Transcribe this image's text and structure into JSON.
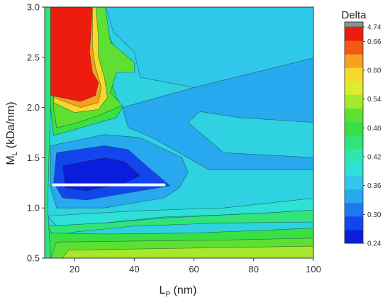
{
  "chart_data": {
    "type": "heatmap",
    "title": "",
    "xlabel": "L",
    "xlabel_sub": "P",
    "xlabel_unit": " (nm)",
    "ylabel": "M",
    "ylabel_sub": "L",
    "ylabel_unit": " (kDa/nm)",
    "xlim": [
      10,
      100
    ],
    "ylim": [
      0.5,
      3.0
    ],
    "x_ticks": [
      "20",
      "40",
      "60",
      "80",
      "100"
    ],
    "x_tick_values": [
      20,
      40,
      60,
      80,
      100
    ],
    "y_ticks": [
      "0.5",
      "1.0",
      "1.5",
      "2.0",
      "2.5",
      "3.0"
    ],
    "y_tick_values": [
      0.5,
      1.0,
      1.5,
      2.0,
      2.5,
      3.0
    ],
    "colorbar": {
      "title": "Delta",
      "labels": [
        "4.74",
        "0.66",
        "0.60",
        "0.54",
        "0.48",
        "0.42",
        "0.36",
        "0.30",
        "0.24"
      ],
      "levels": [
        0.24,
        0.27,
        0.3,
        0.33,
        0.36,
        0.39,
        0.42,
        0.45,
        0.48,
        0.51,
        0.54,
        0.57,
        0.6,
        0.63,
        0.66,
        0.69
      ],
      "colors": [
        "#0a1cdc",
        "#1246ec",
        "#1e78f0",
        "#28a8ee",
        "#30c8ea",
        "#2ee0d6",
        "#2ee6b0",
        "#30e47a",
        "#38e044",
        "#5ee032",
        "#a6e82e",
        "#dcec2e",
        "#f8d82a",
        "#f6a020",
        "#f05a14",
        "#ee1c0e"
      ],
      "overflow_color": "#909090"
    },
    "highlight_line": {
      "x_start": 13,
      "x_end": 50,
      "y": 1.23,
      "color": "#ffffff"
    },
    "background_color": "#2ed2e0",
    "regions": [
      {
        "name": "top-right-lightblue",
        "value": 0.38,
        "polygon": [
          [
            30,
            2.9
          ],
          [
            100,
            2.9
          ],
          [
            100,
            2.2
          ],
          [
            60,
            2.2
          ],
          [
            42,
            2.3
          ],
          [
            40,
            2.55
          ],
          [
            33,
            2.75
          ]
        ]
      },
      {
        "name": "mid-right-blue",
        "value": 0.345,
        "polygon": [
          [
            36,
            2.0
          ],
          [
            60,
            2.2
          ],
          [
            100,
            2.5
          ],
          [
            100,
            1.85
          ],
          [
            75,
            1.9
          ],
          [
            62,
            1.96
          ],
          [
            58,
            1.85
          ],
          [
            70,
            1.55
          ],
          [
            100,
            1.5
          ],
          [
            100,
            1.38
          ],
          [
            65,
            1.38
          ],
          [
            55,
            1.55
          ],
          [
            46,
            1.7
          ],
          [
            38,
            1.8
          ]
        ]
      },
      {
        "name": "low-blue-band",
        "value": 0.33,
        "polygon": [
          [
            12,
            1.62
          ],
          [
            30,
            1.73
          ],
          [
            42,
            1.7
          ],
          [
            56,
            1.5
          ],
          [
            58,
            1.35
          ],
          [
            55,
            1.2
          ],
          [
            50,
            1.1
          ],
          [
            30,
            1.0
          ],
          [
            14,
            1.0
          ],
          [
            12,
            1.2
          ]
        ]
      },
      {
        "name": "blue-core",
        "value": 0.285,
        "polygon": [
          [
            14,
            1.55
          ],
          [
            30,
            1.62
          ],
          [
            38,
            1.58
          ],
          [
            44,
            1.42
          ],
          [
            52,
            1.22
          ],
          [
            40,
            1.16
          ],
          [
            24,
            1.08
          ],
          [
            16,
            1.1
          ],
          [
            13,
            1.25
          ]
        ]
      },
      {
        "name": "deep-blue-core",
        "value": 0.25,
        "polygon": [
          [
            16,
            1.42
          ],
          [
            30,
            1.5
          ],
          [
            37,
            1.46
          ],
          [
            42,
            1.32
          ],
          [
            36,
            1.24
          ],
          [
            24,
            1.17
          ],
          [
            17,
            1.2
          ]
        ]
      },
      {
        "name": "lower-cyan",
        "value": 0.39,
        "polygon": [
          [
            11,
            0.92
          ],
          [
            40,
            0.97
          ],
          [
            60,
            0.99
          ],
          [
            70,
            1.0
          ],
          [
            100,
            1.1
          ],
          [
            100,
            0.98
          ],
          [
            84,
            0.95
          ],
          [
            70,
            0.93
          ],
          [
            50,
            0.91
          ],
          [
            30,
            0.85
          ],
          [
            14,
            0.82
          ]
        ]
      },
      {
        "name": "teal-band",
        "value": 0.45,
        "polygon": [
          [
            11,
            0.82
          ],
          [
            30,
            0.85
          ],
          [
            50,
            0.9
          ],
          [
            70,
            0.93
          ],
          [
            84,
            0.95
          ],
          [
            100,
            0.98
          ],
          [
            100,
            0.86
          ],
          [
            70,
            0.85
          ],
          [
            40,
            0.82
          ],
          [
            20,
            0.76
          ],
          [
            13,
            0.72
          ]
        ]
      },
      {
        "name": "green-bottom",
        "value": 0.5,
        "polygon": [
          [
            12,
            0.75
          ],
          [
            30,
            0.74
          ],
          [
            60,
            0.75
          ],
          [
            85,
            0.78
          ],
          [
            100,
            0.8
          ],
          [
            100,
            0.5
          ],
          [
            10,
            0.5
          ],
          [
            10,
            0.72
          ]
        ]
      },
      {
        "name": "green-bottom-2",
        "value": 0.53,
        "polygon": [
          [
            14,
            0.66
          ],
          [
            40,
            0.67
          ],
          [
            70,
            0.68
          ],
          [
            100,
            0.7
          ],
          [
            100,
            0.5
          ],
          [
            12,
            0.5
          ]
        ]
      },
      {
        "name": "green-bottom-3",
        "value": 0.56,
        "polygon": [
          [
            18,
            0.58
          ],
          [
            60,
            0.6
          ],
          [
            100,
            0.62
          ],
          [
            100,
            0.5
          ],
          [
            16,
            0.5
          ]
        ]
      },
      {
        "name": "left-teal-strip",
        "value": 0.45,
        "polygon": [
          [
            10,
            2.9
          ],
          [
            10,
            0.5
          ],
          [
            12,
            0.5
          ],
          [
            11,
            1.0
          ],
          [
            11.5,
            1.6
          ],
          [
            12,
            2.0
          ],
          [
            13,
            2.4
          ],
          [
            13,
            2.9
          ]
        ]
      },
      {
        "name": "green-wedge-left",
        "value": 0.5,
        "polygon": [
          [
            12,
            2.9
          ],
          [
            12,
            2.0
          ],
          [
            13,
            1.72
          ],
          [
            20,
            1.78
          ],
          [
            28,
            1.85
          ],
          [
            34,
            1.9
          ],
          [
            36,
            2.0
          ],
          [
            34,
            2.1
          ],
          [
            32,
            2.3
          ],
          [
            34,
            2.55
          ],
          [
            31,
            2.75
          ],
          [
            30,
            2.9
          ]
        ]
      },
      {
        "name": "green-top-spur",
        "value": 0.52,
        "polygon": [
          [
            30,
            2.9
          ],
          [
            32,
            2.65
          ],
          [
            36,
            2.55
          ],
          [
            40,
            2.45
          ],
          [
            40,
            2.35
          ],
          [
            34,
            2.35
          ],
          [
            32,
            2.15
          ],
          [
            36,
            2.02
          ],
          [
            28,
            1.92
          ],
          [
            20,
            1.84
          ],
          [
            14,
            1.8
          ],
          [
            13,
            2.0
          ],
          [
            13,
            2.9
          ]
        ]
      },
      {
        "name": "yellow-ring",
        "value": 0.61,
        "polygon": [
          [
            13,
            2.9
          ],
          [
            13,
            2.05
          ],
          [
            20,
            1.95
          ],
          [
            28,
            1.98
          ],
          [
            31,
            2.1
          ],
          [
            30,
            2.3
          ],
          [
            28,
            2.5
          ],
          [
            28,
            2.7
          ],
          [
            27,
            2.9
          ]
        ]
      },
      {
        "name": "orange-ring",
        "value": 0.64,
        "polygon": [
          [
            13,
            2.9
          ],
          [
            13,
            2.1
          ],
          [
            22,
            2.0
          ],
          [
            28,
            2.05
          ],
          [
            29,
            2.2
          ],
          [
            27,
            2.4
          ],
          [
            26,
            2.6
          ],
          [
            26,
            2.9
          ]
        ]
      },
      {
        "name": "red-core",
        "value": 0.7,
        "polygon": [
          [
            12,
            2.9
          ],
          [
            12,
            2.12
          ],
          [
            22,
            2.06
          ],
          [
            27,
            2.12
          ],
          [
            28,
            2.25
          ],
          [
            26,
            2.35
          ],
          [
            25,
            2.55
          ],
          [
            25.5,
            2.75
          ],
          [
            26,
            2.9
          ]
        ]
      }
    ]
  }
}
